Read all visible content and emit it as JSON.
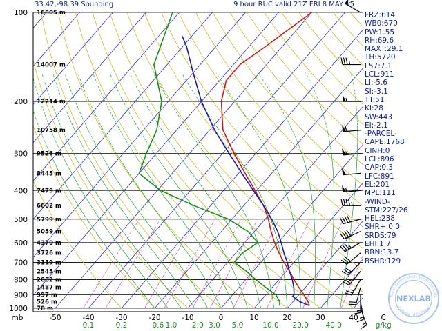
{
  "header": {
    "location": "33.42,-98.39 Sounding",
    "valid": "9 hour RUC valid 21Z FRI  8 MAY 15"
  },
  "indices": [
    "FRZ:614",
    "WB0:670",
    "PW:1.55",
    "RH:69.6",
    "MAXT:29.1",
    "TH:5720",
    "L57:7.1",
    "LCL:911",
    "LI:-5.6",
    "SI:-3.1",
    "TT:51",
    "KI:28",
    "SW:443",
    "EI:-2.1",
    "-PARCEL-",
    "CAPE:1768",
    "CINH:0",
    "LCL:896",
    "CAP:0.3",
    "LFC:891",
    "EL:201",
    "MPL:111",
    "-WIND-",
    "STM:227/26",
    "HEL:238",
    "SHR+:0.0",
    "SRDS:79",
    "EHI:1.7",
    "BRN:13.7",
    "BSHR:129"
  ],
  "logo": {
    "text": "NEXLAB",
    "ring_top": "Next Generation Weather Lab",
    "ring_bottom": "College of DuPage"
  },
  "chart_data": {
    "type": "line",
    "title": "",
    "xlabel": "C",
    "ylabel": "mb",
    "ylim": [
      1000,
      100
    ],
    "xlim": [
      -50,
      50
    ],
    "y_ticks": [
      100,
      200,
      300,
      400,
      500,
      600,
      700,
      800,
      900,
      1000
    ],
    "y_tick_labels": [
      "100",
      "200",
      "300",
      "400",
      "500",
      "600",
      "700",
      "800",
      "900",
      "1000"
    ],
    "y_axis_unit_label": "mb",
    "x_ticks": [
      -50,
      -40,
      -30,
      -20,
      -10,
      0,
      10,
      20,
      30,
      40
    ],
    "x_tick_labels": [
      "-50",
      "-40",
      "-30",
      "-20",
      "-10",
      "0",
      "10",
      "20",
      "30",
      "40"
    ],
    "x_unit_label": "C",
    "mixing_ratio_ticks": [
      {
        "value": "0.1",
        "temp": -40
      },
      {
        "value": "0.2",
        "temp": -30
      },
      {
        "value": "0.6",
        "temp": -19
      },
      {
        "value": "1.0",
        "temp": -15
      },
      {
        "value": "2.0",
        "temp": -7
      },
      {
        "value": "3.0",
        "temp": -2
      },
      {
        "value": "5.0",
        "temp": 5
      },
      {
        "value": "10.0",
        "temp": 15
      },
      {
        "value": "20.0",
        "temp": 24
      },
      {
        "value": "40.0",
        "temp": 34
      }
    ],
    "mixing_ratio_unit": "g/kg",
    "height_labels": [
      {
        "p": 100,
        "text": "16805 m"
      },
      {
        "p": 150,
        "text": "14007 m"
      },
      {
        "p": 200,
        "text": "12214 m"
      },
      {
        "p": 250,
        "text": "10758 m"
      },
      {
        "p": 300,
        "text": "9526 m"
      },
      {
        "p": 350,
        "text": "8445 m"
      },
      {
        "p": 400,
        "text": "7479 m"
      },
      {
        "p": 450,
        "text": "6602 m"
      },
      {
        "p": 500,
        "text": "5799 m"
      },
      {
        "p": 550,
        "text": "5059 m"
      },
      {
        "p": 600,
        "text": "4370 m"
      },
      {
        "p": 650,
        "text": "3726 m"
      },
      {
        "p": 700,
        "text": "3119 m"
      },
      {
        "p": 750,
        "text": "2545 m"
      },
      {
        "p": 800,
        "text": "2002 m"
      },
      {
        "p": 850,
        "text": "1487 m"
      },
      {
        "p": 900,
        "text": "997 m"
      },
      {
        "p": 950,
        "text": "526 m"
      },
      {
        "p": 1000,
        "text": "78 m"
      }
    ],
    "series": [
      {
        "color": "#cc1a1a",
        "points": [
          [
            980,
            26
          ],
          [
            950,
            24.5
          ],
          [
            900,
            21.5
          ],
          [
            850,
            18
          ],
          [
            800,
            14.5
          ],
          [
            750,
            11
          ],
          [
            700,
            7
          ],
          [
            650,
            3
          ],
          [
            600,
            -1
          ],
          [
            550,
            -5
          ],
          [
            500,
            -9
          ],
          [
            450,
            -14
          ],
          [
            400,
            -20.5
          ],
          [
            350,
            -28
          ],
          [
            300,
            -36.5
          ],
          [
            250,
            -46
          ],
          [
            200,
            -54
          ],
          [
            170,
            -58
          ],
          [
            150,
            -58
          ],
          [
            130,
            -55
          ],
          [
            100,
            -50
          ]
        ]
      },
      {
        "color": "#1c8a1c",
        "points": [
          [
            980,
            17
          ],
          [
            950,
            16
          ],
          [
            900,
            13
          ],
          [
            850,
            8
          ],
          [
            800,
            3
          ],
          [
            750,
            -2
          ],
          [
            700,
            -8
          ],
          [
            650,
            -8
          ],
          [
            600,
            -6
          ],
          [
            550,
            -12
          ],
          [
            500,
            -21
          ],
          [
            450,
            -35
          ],
          [
            400,
            -49
          ],
          [
            350,
            -60
          ],
          [
            300,
            -63
          ],
          [
            250,
            -66
          ],
          [
            200,
            -72
          ],
          [
            150,
            -84
          ],
          [
            100,
            -92
          ]
        ]
      },
      {
        "color": "#1a1aa0",
        "points": [
          [
            980,
            26
          ],
          [
            950,
            22
          ],
          [
            912,
            18.5
          ],
          [
            900,
            18.5
          ],
          [
            850,
            16.5
          ],
          [
            800,
            14
          ],
          [
            750,
            11
          ],
          [
            700,
            8
          ],
          [
            650,
            4.5
          ],
          [
            600,
            1
          ],
          [
            550,
            -3
          ],
          [
            500,
            -8
          ],
          [
            450,
            -14
          ],
          [
            400,
            -21
          ],
          [
            350,
            -29
          ],
          [
            300,
            -38
          ],
          [
            250,
            -48.5
          ],
          [
            200,
            -60
          ],
          [
            160,
            -70
          ],
          [
            130,
            -79
          ],
          [
            120,
            -83
          ]
        ]
      }
    ],
    "wind_barbs": [
      {
        "p": 100,
        "dir": 300,
        "spd": 55
      },
      {
        "p": 150,
        "dir": 270,
        "spd": 35
      },
      {
        "p": 200,
        "dir": 270,
        "spd": 55
      },
      {
        "p": 250,
        "dir": 265,
        "spd": 60
      },
      {
        "p": 300,
        "dir": 265,
        "spd": 55
      },
      {
        "p": 350,
        "dir": 265,
        "spd": 50
      },
      {
        "p": 400,
        "dir": 265,
        "spd": 55
      },
      {
        "p": 450,
        "dir": 270,
        "spd": 45
      },
      {
        "p": 500,
        "dir": 255,
        "spd": 40
      },
      {
        "p": 550,
        "dir": 245,
        "spd": 40
      },
      {
        "p": 600,
        "dir": 240,
        "spd": 35
      },
      {
        "p": 650,
        "dir": 230,
        "spd": 30
      },
      {
        "p": 700,
        "dir": 225,
        "spd": 30
      },
      {
        "p": 750,
        "dir": 220,
        "spd": 25
      },
      {
        "p": 800,
        "dir": 210,
        "spd": 25
      },
      {
        "p": 850,
        "dir": 195,
        "spd": 20
      },
      {
        "p": 900,
        "dir": 180,
        "spd": 15
      },
      {
        "p": 950,
        "dir": 170,
        "spd": 15
      },
      {
        "p": 1000,
        "dir": 160,
        "spd": 15
      }
    ],
    "grid": true,
    "legend": "none"
  }
}
